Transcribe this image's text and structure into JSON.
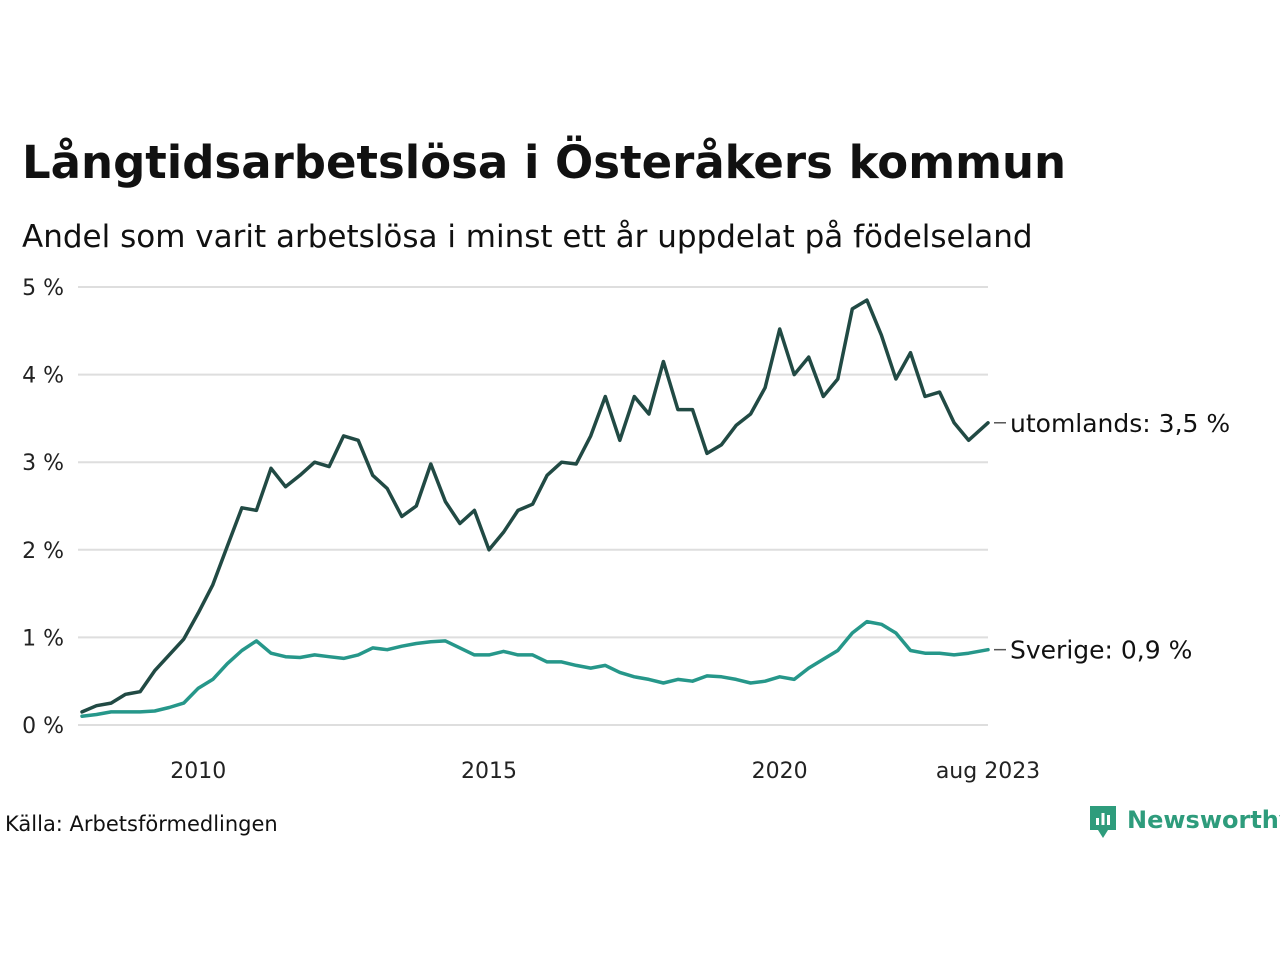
{
  "title": "Långtidsarbetslösa i Österåkers kommun",
  "subtitle": "Andel som varit arbetslösa i minst ett år uppdelat på födelseland",
  "source": "Källa: Arbetsförmedlingen",
  "brand": {
    "name": "Newsworthy",
    "icon": "newsworthy-logo-icon",
    "color": "#2e9c7c"
  },
  "colors": {
    "utomlands": "#214a44",
    "sverige": "#26978a",
    "grid": "#dedede"
  },
  "chart_data": {
    "type": "line",
    "title": "Långtidsarbetslösa i Österåkers kommun",
    "subtitle": "Andel som varit arbetslösa i minst ett år uppdelat på födelseland",
    "xlabel": "",
    "ylabel": "",
    "x_range": [
      "2008-01",
      "2023-08"
    ],
    "ylim": [
      0,
      5
    ],
    "y_ticks": [
      0,
      1,
      2,
      3,
      4,
      5
    ],
    "y_tick_labels": [
      "0 %",
      "1 %",
      "2 %",
      "3 %",
      "4 %",
      "5 %"
    ],
    "x_ticks": [
      "2010-01",
      "2015-01",
      "2020-01",
      "2023-08"
    ],
    "x_tick_labels": [
      "2010",
      "2015",
      "2020",
      "aug 2023"
    ],
    "grid": true,
    "legend": "direct labels at line ends (right)",
    "series": [
      {
        "name": "utomlands",
        "end_label": "utomlands: 3,5 %",
        "color": "#214a44",
        "points": [
          [
            "2008-01",
            0.15
          ],
          [
            "2008-04",
            0.22
          ],
          [
            "2008-07",
            0.25
          ],
          [
            "2008-10",
            0.35
          ],
          [
            "2009-01",
            0.38
          ],
          [
            "2009-04",
            0.62
          ],
          [
            "2009-07",
            0.8
          ],
          [
            "2009-10",
            0.98
          ],
          [
            "2010-01",
            1.28
          ],
          [
            "2010-04",
            1.6
          ],
          [
            "2010-07",
            2.04
          ],
          [
            "2010-10",
            2.48
          ],
          [
            "2011-01",
            2.45
          ],
          [
            "2011-04",
            2.93
          ],
          [
            "2011-07",
            2.72
          ],
          [
            "2011-10",
            2.85
          ],
          [
            "2012-01",
            3.0
          ],
          [
            "2012-04",
            2.95
          ],
          [
            "2012-07",
            3.3
          ],
          [
            "2012-10",
            3.25
          ],
          [
            "2013-01",
            2.85
          ],
          [
            "2013-04",
            2.7
          ],
          [
            "2013-07",
            2.38
          ],
          [
            "2013-10",
            2.5
          ],
          [
            "2014-01",
            2.98
          ],
          [
            "2014-04",
            2.55
          ],
          [
            "2014-07",
            2.3
          ],
          [
            "2014-10",
            2.45
          ],
          [
            "2015-01",
            2.0
          ],
          [
            "2015-04",
            2.2
          ],
          [
            "2015-07",
            2.45
          ],
          [
            "2015-10",
            2.52
          ],
          [
            "2016-01",
            2.85
          ],
          [
            "2016-04",
            3.0
          ],
          [
            "2016-07",
            2.98
          ],
          [
            "2016-10",
            3.3
          ],
          [
            "2017-01",
            3.75
          ],
          [
            "2017-04",
            3.25
          ],
          [
            "2017-07",
            3.75
          ],
          [
            "2017-10",
            3.55
          ],
          [
            "2018-01",
            4.15
          ],
          [
            "2018-04",
            3.6
          ],
          [
            "2018-07",
            3.6
          ],
          [
            "2018-10",
            3.1
          ],
          [
            "2019-01",
            3.2
          ],
          [
            "2019-04",
            3.42
          ],
          [
            "2019-07",
            3.55
          ],
          [
            "2019-10",
            3.85
          ],
          [
            "2020-01",
            4.52
          ],
          [
            "2020-04",
            4.0
          ],
          [
            "2020-07",
            4.2
          ],
          [
            "2020-10",
            3.75
          ],
          [
            "2021-01",
            3.95
          ],
          [
            "2021-04",
            4.75
          ],
          [
            "2021-07",
            4.85
          ],
          [
            "2021-10",
            4.45
          ],
          [
            "2022-01",
            3.95
          ],
          [
            "2022-04",
            4.25
          ],
          [
            "2022-07",
            3.75
          ],
          [
            "2022-10",
            3.8
          ],
          [
            "2023-01",
            3.45
          ],
          [
            "2023-04",
            3.25
          ],
          [
            "2023-08",
            3.45
          ]
        ]
      },
      {
        "name": "Sverige",
        "end_label": "Sverige: 0,9 %",
        "color": "#26978a",
        "points": [
          [
            "2008-01",
            0.1
          ],
          [
            "2008-04",
            0.12
          ],
          [
            "2008-07",
            0.15
          ],
          [
            "2008-10",
            0.15
          ],
          [
            "2009-01",
            0.15
          ],
          [
            "2009-04",
            0.16
          ],
          [
            "2009-07",
            0.2
          ],
          [
            "2009-10",
            0.25
          ],
          [
            "2010-01",
            0.42
          ],
          [
            "2010-04",
            0.52
          ],
          [
            "2010-07",
            0.7
          ],
          [
            "2010-10",
            0.85
          ],
          [
            "2011-01",
            0.96
          ],
          [
            "2011-04",
            0.82
          ],
          [
            "2011-07",
            0.78
          ],
          [
            "2011-10",
            0.77
          ],
          [
            "2012-01",
            0.8
          ],
          [
            "2012-04",
            0.78
          ],
          [
            "2012-07",
            0.76
          ],
          [
            "2012-10",
            0.8
          ],
          [
            "2013-01",
            0.88
          ],
          [
            "2013-04",
            0.86
          ],
          [
            "2013-07",
            0.9
          ],
          [
            "2013-10",
            0.93
          ],
          [
            "2014-01",
            0.95
          ],
          [
            "2014-04",
            0.96
          ],
          [
            "2014-07",
            0.88
          ],
          [
            "2014-10",
            0.8
          ],
          [
            "2015-01",
            0.8
          ],
          [
            "2015-04",
            0.84
          ],
          [
            "2015-07",
            0.8
          ],
          [
            "2015-10",
            0.8
          ],
          [
            "2016-01",
            0.72
          ],
          [
            "2016-04",
            0.72
          ],
          [
            "2016-07",
            0.68
          ],
          [
            "2016-10",
            0.65
          ],
          [
            "2017-01",
            0.68
          ],
          [
            "2017-04",
            0.6
          ],
          [
            "2017-07",
            0.55
          ],
          [
            "2017-10",
            0.52
          ],
          [
            "2018-01",
            0.48
          ],
          [
            "2018-04",
            0.52
          ],
          [
            "2018-07",
            0.5
          ],
          [
            "2018-10",
            0.56
          ],
          [
            "2019-01",
            0.55
          ],
          [
            "2019-04",
            0.52
          ],
          [
            "2019-07",
            0.48
          ],
          [
            "2019-10",
            0.5
          ],
          [
            "2020-01",
            0.55
          ],
          [
            "2020-04",
            0.52
          ],
          [
            "2020-07",
            0.65
          ],
          [
            "2020-10",
            0.75
          ],
          [
            "2021-01",
            0.85
          ],
          [
            "2021-04",
            1.05
          ],
          [
            "2021-07",
            1.18
          ],
          [
            "2021-10",
            1.15
          ],
          [
            "2022-01",
            1.05
          ],
          [
            "2022-04",
            0.85
          ],
          [
            "2022-07",
            0.82
          ],
          [
            "2022-10",
            0.82
          ],
          [
            "2023-01",
            0.8
          ],
          [
            "2023-04",
            0.82
          ],
          [
            "2023-08",
            0.86
          ]
        ]
      }
    ]
  }
}
